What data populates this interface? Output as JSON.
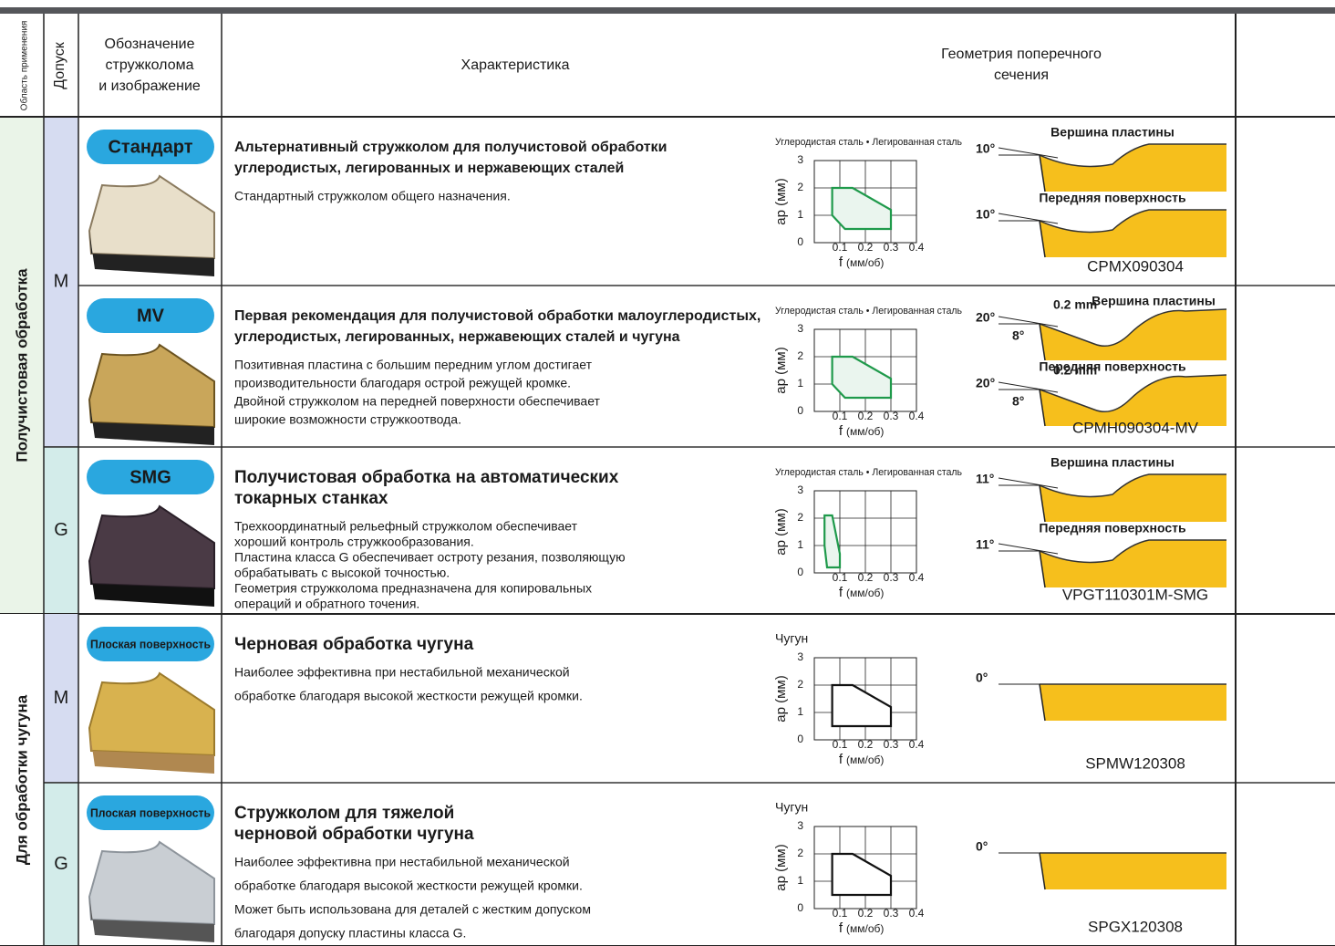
{
  "header": {
    "area": "Область применения",
    "tolerance": "Допуск",
    "designation": [
      "Обозначение",
      "стружколома",
      "и изображение"
    ],
    "characteristic": "Характеристика",
    "geometry": [
      "Геометрия поперечного",
      "сечения"
    ]
  },
  "groups": [
    {
      "label": "Получистовая обработка",
      "tolerances": [
        {
          "label": "M",
          "rows": [
            {
              "badge": "Стандарт",
              "title": [
                "Альтернативный стружколом для получистовой обработки",
                "углеродистых, легированных и нержавеющих сталей"
              ],
              "description": [
                "Стандартный стружколом общего назначения."
              ],
              "chart": {
                "material": "Углеродистая сталь • Легированная сталь",
                "ylabel": "ap (мм)",
                "xlabel": "f",
                "xunit": "(мм/об)",
                "xlim": [
                  0,
                  0.4
                ],
                "ylim": [
                  0,
                  3
                ],
                "xticks": [
                  0.1,
                  0.2,
                  0.3,
                  0.4
                ],
                "yticks": [
                  0,
                  1,
                  2,
                  3
                ],
                "color": "#1f9a4b",
                "region_x": [
                  0.07,
                  0.15,
                  0.3,
                  0.3,
                  0.12,
                  0.07
                ],
                "region_y": [
                  2,
                  2,
                  1.2,
                  0.5,
                  0.5,
                  1
                ]
              },
              "geometry": {
                "profiles": [
                  {
                    "label": "Вершина пластины",
                    "marks": [
                      "10°"
                    ]
                  },
                  {
                    "label": "Передняя поверхность",
                    "marks": [
                      "10°"
                    ]
                  }
                ],
                "code": "CPMX090304"
              }
            },
            {
              "badge": "MV",
              "title": [
                "Первая рекомендация для получистовой обработки малоуглеродистых,",
                "углеродистых, легированных, нержавеющих сталей и чугуна"
              ],
              "description": [
                "Позитивная пластина с большим передним углом достигает",
                "производительности благодаря острой режущей кромке.",
                "Двойной стружколом на передней поверхности обеспечивает",
                "широкие возможности стружкоотвода."
              ],
              "chart": {
                "material": "Углеродистая сталь • Легированная сталь",
                "ylabel": "ap (мм)",
                "xlabel": "f",
                "xunit": "(мм/об)",
                "xlim": [
                  0,
                  0.4
                ],
                "ylim": [
                  0,
                  3
                ],
                "xticks": [
                  0.1,
                  0.2,
                  0.3,
                  0.4
                ],
                "yticks": [
                  0,
                  1,
                  2,
                  3
                ],
                "color": "#1f9a4b",
                "region_x": [
                  0.07,
                  0.15,
                  0.3,
                  0.3,
                  0.12,
                  0.07
                ],
                "region_y": [
                  2,
                  2,
                  1.2,
                  0.5,
                  0.5,
                  1
                ]
              },
              "geometry": {
                "profiles": [
                  {
                    "label": "Вершина пластины",
                    "marks": [
                      "20°",
                      "0.2 mm",
                      "8°"
                    ]
                  },
                  {
                    "label": "Передняя поверхность",
                    "marks": [
                      "20°",
                      "0.2 mm",
                      "8°"
                    ]
                  }
                ],
                "code": "CPMH090304-MV"
              }
            }
          ]
        },
        {
          "label": "G",
          "rows": [
            {
              "badge": "SMG",
              "title": [
                "Получистовая обработка на автоматических",
                "токарных станках"
              ],
              "description": [
                "Трехкоординатный рельефный стружколом обеспечивает",
                "хороший контроль стружкообразования.",
                "Пластина класса G обеспечивает остроту резания, позволяющую",
                "обрабатывать с высокой точностью.",
                "Геометрия стружколома предназначена для копировальных",
                "операций и обратного точения."
              ],
              "chart": {
                "material": "Углеродистая сталь • Легированная сталь",
                "ylabel": "ap (мм)",
                "xlabel": "f",
                "xunit": "(мм/об)",
                "xlim": [
                  0,
                  0.4
                ],
                "ylim": [
                  0,
                  3
                ],
                "xticks": [
                  0.1,
                  0.2,
                  0.3,
                  0.4
                ],
                "yticks": [
                  0,
                  1,
                  2,
                  3
                ],
                "color": "#1f9a4b",
                "region_x": [
                  0.04,
                  0.07,
                  0.1,
                  0.1,
                  0.05,
                  0.04
                ],
                "region_y": [
                  2.1,
                  2.1,
                  0.7,
                  0.2,
                  0.2,
                  1
                ]
              },
              "geometry": {
                "profiles": [
                  {
                    "label": "Вершина пластины",
                    "marks": [
                      "11°"
                    ]
                  },
                  {
                    "label": "Передняя поверхность",
                    "marks": [
                      "11°"
                    ]
                  }
                ],
                "code": "VPGT110301M-SMG"
              }
            }
          ]
        }
      ]
    },
    {
      "label": "Для обработки чугуна",
      "tolerances": [
        {
          "label": "M",
          "rows": [
            {
              "badge": "Плоская поверхность",
              "title": [
                "Черновая обработка чугуна"
              ],
              "description": [
                "Наиболее эффективна при нестабильной механической",
                "обработке благодаря высокой жесткости режущей кромки."
              ],
              "chart": {
                "material": "Чугун",
                "ylabel": "ap (мм)",
                "xlabel": "f",
                "xunit": "(мм/об)",
                "xlim": [
                  0,
                  0.4
                ],
                "ylim": [
                  0,
                  3
                ],
                "xticks": [
                  0.1,
                  0.2,
                  0.3,
                  0.4
                ],
                "yticks": [
                  0,
                  1,
                  2,
                  3
                ],
                "color": "#111111",
                "region_x": [
                  0.07,
                  0.15,
                  0.3,
                  0.3,
                  0.07
                ],
                "region_y": [
                  2,
                  2,
                  1.2,
                  0.5,
                  0.5
                ]
              },
              "geometry": {
                "profiles": [
                  {
                    "marks": [
                      "0°"
                    ]
                  }
                ],
                "code": "SPMW120308"
              }
            }
          ]
        },
        {
          "label": "G",
          "rows": [
            {
              "badge": "Плоская поверхность",
              "title": [
                "Стружколом для тяжелой",
                "черновой обработки чугуна"
              ],
              "description": [
                "Наиболее эффективна при нестабильной механической",
                "обработке благодаря высокой жесткости режущей кромки.",
                "Может быть использована для деталей с жестким допуском",
                "благодаря допуску пластины класса G."
              ],
              "chart": {
                "material": "Чугун",
                "ylabel": "ap (мм)",
                "xlabel": "f",
                "xunit": "(мм/об)",
                "xlim": [
                  0,
                  0.4
                ],
                "ylim": [
                  0,
                  3
                ],
                "xticks": [
                  0.1,
                  0.2,
                  0.3,
                  0.4
                ],
                "yticks": [
                  0,
                  1,
                  2,
                  3
                ],
                "color": "#111111",
                "region_x": [
                  0.07,
                  0.15,
                  0.3,
                  0.3,
                  0.07
                ],
                "region_y": [
                  2,
                  2,
                  1.2,
                  0.5,
                  0.5
                ]
              },
              "geometry": {
                "profiles": [
                  {
                    "marks": [
                      "0°"
                    ]
                  }
                ],
                "code": "SPGX120308"
              }
            }
          ]
        }
      ]
    }
  ]
}
